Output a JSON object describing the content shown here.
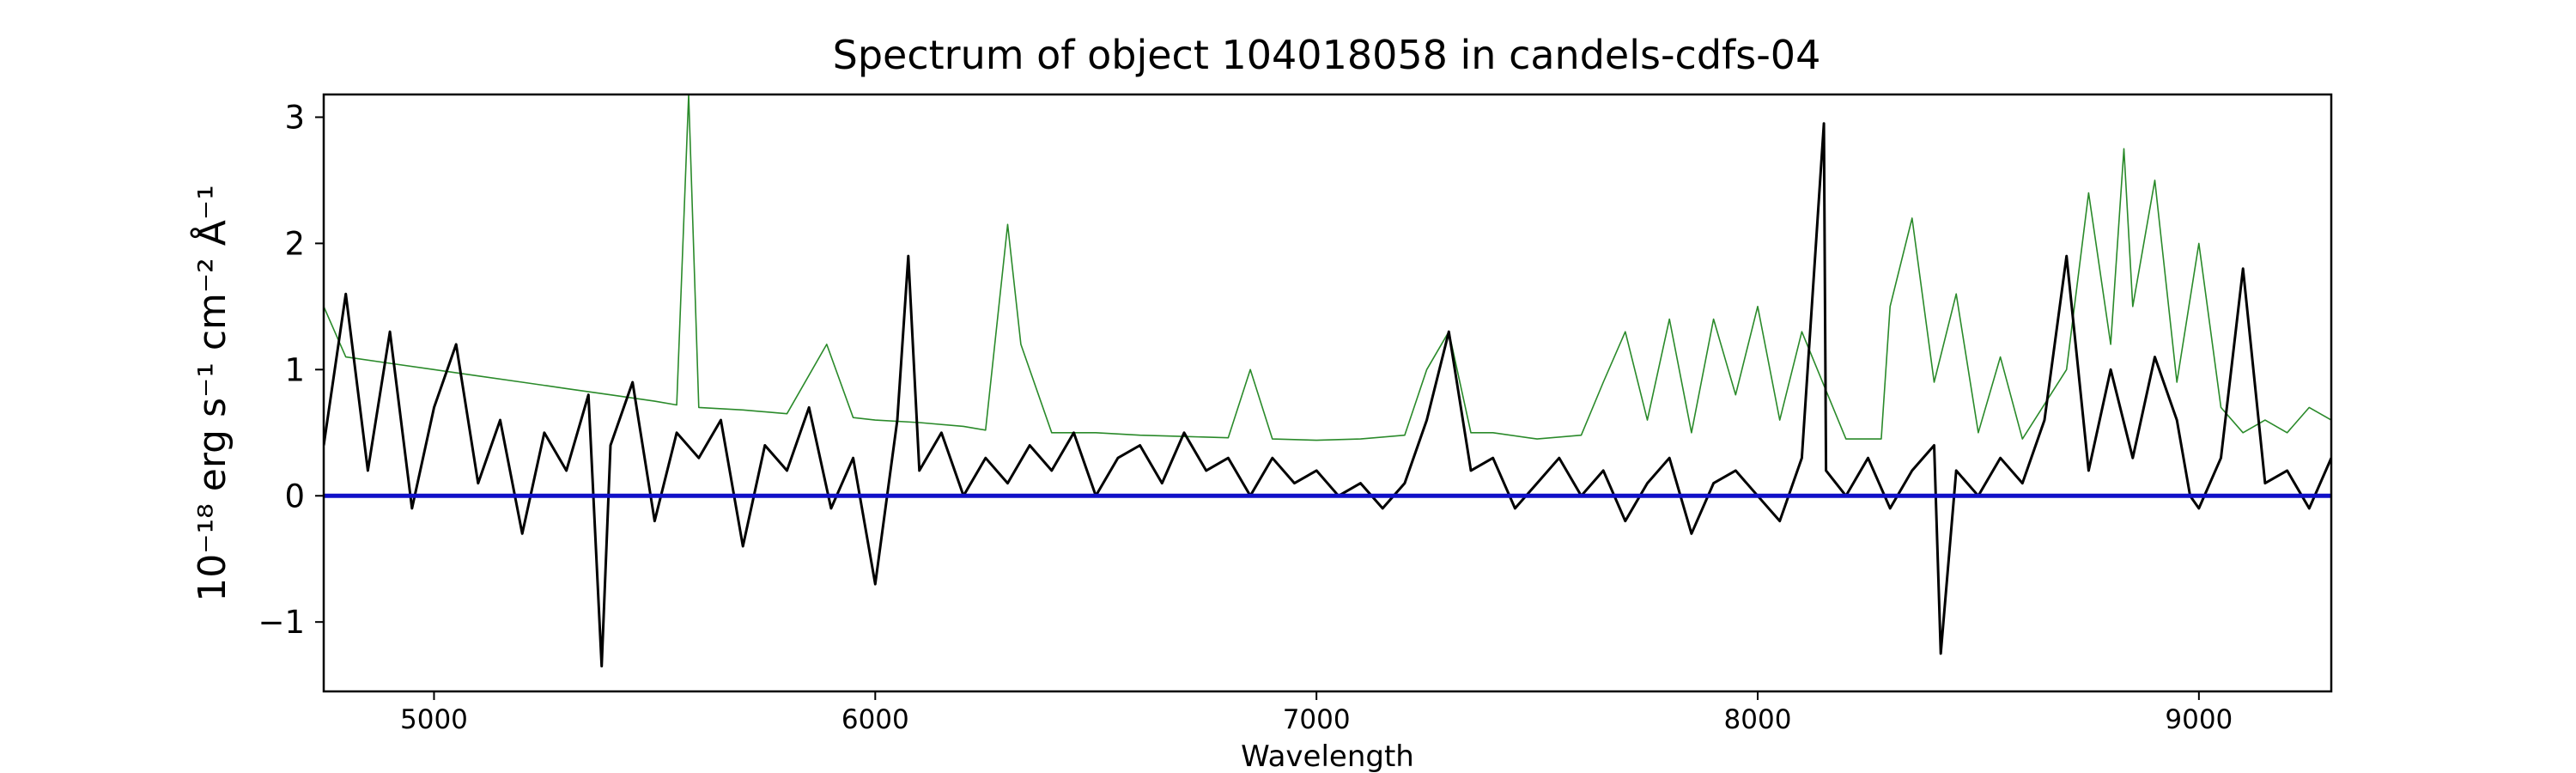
{
  "chart_data": {
    "type": "line",
    "title": "Spectrum of object 104018058 in candels-cdfs-04",
    "xlabel": "Wavelength",
    "ylabel": "10⁻¹⁸ erg s⁻¹ cm⁻² Å⁻¹",
    "xlim": [
      4750,
      9300
    ],
    "ylim": [
      -1.55,
      3.18
    ],
    "xticks": [
      5000,
      6000,
      7000,
      8000,
      9000
    ],
    "yticks": [
      -1,
      0,
      1,
      2,
      3
    ],
    "grid": false,
    "legend": "none",
    "series": [
      {
        "color": "#000000",
        "x": [
          4750,
          4800,
          4850,
          4900,
          4950,
          5000,
          5050,
          5100,
          5150,
          5200,
          5250,
          5300,
          5350,
          5380,
          5400,
          5450,
          5500,
          5550,
          5600,
          5650,
          5700,
          5750,
          5800,
          5850,
          5900,
          5950,
          6000,
          6050,
          6075,
          6100,
          6150,
          6200,
          6250,
          6300,
          6350,
          6400,
          6450,
          6500,
          6550,
          6600,
          6650,
          6700,
          6750,
          6800,
          6850,
          6900,
          6950,
          7000,
          7050,
          7100,
          7150,
          7200,
          7250,
          7300,
          7350,
          7400,
          7450,
          7500,
          7550,
          7600,
          7650,
          7700,
          7750,
          7800,
          7850,
          7900,
          7950,
          8000,
          8050,
          8100,
          8150,
          8155,
          8200,
          8250,
          8300,
          8350,
          8400,
          8415,
          8450,
          8500,
          8550,
          8600,
          8650,
          8700,
          8750,
          8800,
          8850,
          8900,
          8950,
          8980,
          9000,
          9050,
          9100,
          9150,
          9200,
          9250,
          9300
        ],
        "y": [
          0.4,
          1.6,
          0.2,
          1.3,
          -0.1,
          0.7,
          1.2,
          0.1,
          0.6,
          -0.3,
          0.5,
          0.2,
          0.8,
          -1.35,
          0.4,
          0.9,
          -0.2,
          0.5,
          0.3,
          0.6,
          -0.4,
          0.4,
          0.2,
          0.7,
          -0.1,
          0.3,
          -0.7,
          0.6,
          1.9,
          0.2,
          0.5,
          0.0,
          0.3,
          0.1,
          0.4,
          0.2,
          0.5,
          0.0,
          0.3,
          0.4,
          0.1,
          0.5,
          0.2,
          0.3,
          0.0,
          0.3,
          0.1,
          0.2,
          0.0,
          0.1,
          -0.1,
          0.1,
          0.6,
          1.3,
          0.2,
          0.3,
          -0.1,
          0.1,
          0.3,
          0.0,
          0.2,
          -0.2,
          0.1,
          0.3,
          -0.3,
          0.1,
          0.2,
          0.0,
          -0.2,
          0.3,
          2.95,
          0.2,
          0.0,
          0.3,
          -0.1,
          0.2,
          0.4,
          -1.25,
          0.2,
          0.0,
          0.3,
          0.1,
          0.6,
          1.9,
          0.2,
          1.0,
          0.3,
          1.1,
          0.6,
          0.0,
          -0.1,
          0.3,
          1.8,
          0.1,
          0.2,
          -0.1,
          0.3
        ]
      },
      {
        "color": "#2a8a2a",
        "x": [
          4750,
          4800,
          4900,
          5000,
          5100,
          5200,
          5300,
          5400,
          5500,
          5550,
          5577,
          5600,
          5700,
          5800,
          5890,
          5950,
          6000,
          6100,
          6200,
          6250,
          6300,
          6330,
          6400,
          6500,
          6600,
          6700,
          6800,
          6850,
          6900,
          7000,
          7100,
          7200,
          7250,
          7300,
          7350,
          7400,
          7500,
          7600,
          7650,
          7700,
          7750,
          7800,
          7850,
          7900,
          7950,
          8000,
          8050,
          8100,
          8200,
          8280,
          8300,
          8350,
          8400,
          8450,
          8500,
          8550,
          8600,
          8700,
          8750,
          8800,
          8830,
          8850,
          8900,
          8950,
          9000,
          9050,
          9100,
          9150,
          9200,
          9250,
          9300
        ],
        "y": [
          1.5,
          1.1,
          1.05,
          1.0,
          0.95,
          0.9,
          0.85,
          0.8,
          0.75,
          0.72,
          3.18,
          0.7,
          0.68,
          0.65,
          1.2,
          0.62,
          0.6,
          0.58,
          0.55,
          0.52,
          2.15,
          1.2,
          0.5,
          0.5,
          0.48,
          0.47,
          0.46,
          1.0,
          0.45,
          0.44,
          0.45,
          0.48,
          1.0,
          1.3,
          0.5,
          0.5,
          0.45,
          0.48,
          0.9,
          1.3,
          0.6,
          1.4,
          0.5,
          1.4,
          0.8,
          1.5,
          0.6,
          1.3,
          0.45,
          0.45,
          1.5,
          2.2,
          0.9,
          1.6,
          0.5,
          1.1,
          0.45,
          1.0,
          2.4,
          1.2,
          2.75,
          1.5,
          2.5,
          0.9,
          2.0,
          0.7,
          0.5,
          0.6,
          0.5,
          0.7,
          0.6
        ]
      },
      {
        "color": "#1010c8",
        "x": [
          4750,
          9300
        ],
        "y": [
          0,
          0
        ]
      }
    ]
  }
}
